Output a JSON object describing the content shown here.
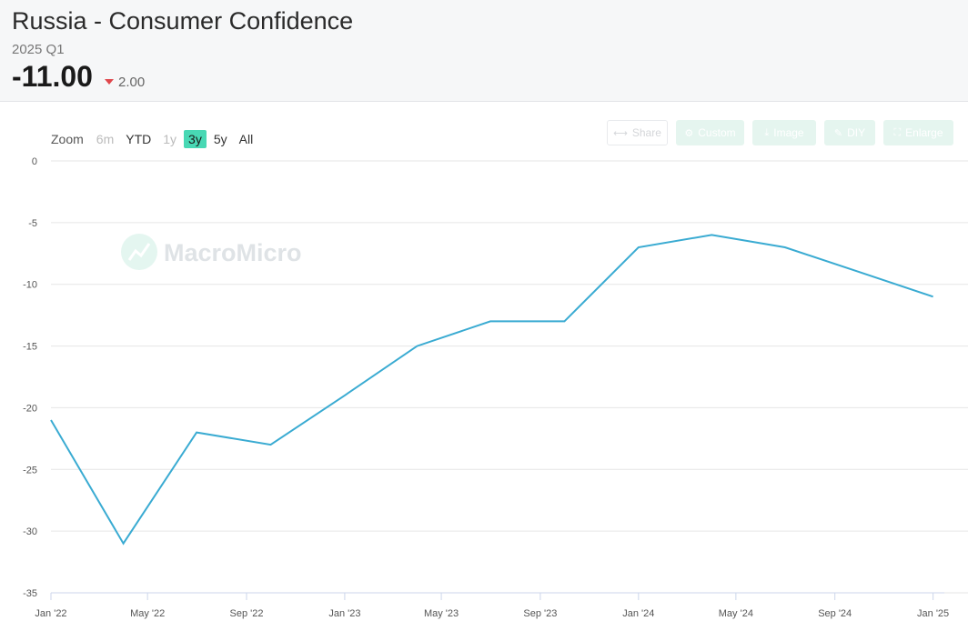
{
  "header": {
    "title": "Russia - Consumer Confidence",
    "period": "2025 Q1",
    "value": "-11.00",
    "change": "2.00"
  },
  "zoom": {
    "label": "Zoom",
    "buttons": [
      "6m",
      "YTD",
      "1y",
      "3y",
      "5y",
      "All"
    ],
    "active": "3y"
  },
  "toolbar": {
    "share": "Share",
    "custom": "Custom",
    "image": "Image",
    "diy": "DIY",
    "enlarge": "Enlarge"
  },
  "watermark": "MacroMicro",
  "colors": {
    "series": "#3aabd2",
    "accent": "#48d8b4",
    "down": "#e0474c"
  },
  "chart_data": {
    "type": "line",
    "title": "",
    "xlabel": "",
    "ylabel": "",
    "ylim": [
      -35,
      0
    ],
    "yticks": [
      0,
      -5,
      -10,
      -15,
      -20,
      -25,
      -30,
      -35
    ],
    "xlim": [
      "2022-01-01",
      "2025-01-15"
    ],
    "xticks": [
      {
        "date": "2022-01-01",
        "label": "Jan '22"
      },
      {
        "date": "2022-05-01",
        "label": "May '22"
      },
      {
        "date": "2022-09-01",
        "label": "Sep '22"
      },
      {
        "date": "2023-01-01",
        "label": "Jan '23"
      },
      {
        "date": "2023-05-01",
        "label": "May '23"
      },
      {
        "date": "2023-09-01",
        "label": "Sep '23"
      },
      {
        "date": "2024-01-01",
        "label": "Jan '24"
      },
      {
        "date": "2024-05-01",
        "label": "May '24"
      },
      {
        "date": "2024-09-01",
        "label": "Sep '24"
      },
      {
        "date": "2025-01-01",
        "label": "Jan '25"
      }
    ],
    "grid": true,
    "series": [
      {
        "points": [
          {
            "x": "2022-01-01",
            "y": -21
          },
          {
            "x": "2022-04-01",
            "y": -31
          },
          {
            "x": "2022-07-01",
            "y": -22
          },
          {
            "x": "2022-10-01",
            "y": -23
          },
          {
            "x": "2023-01-01",
            "y": -19
          },
          {
            "x": "2023-04-01",
            "y": -15
          },
          {
            "x": "2023-07-01",
            "y": -13
          },
          {
            "x": "2023-10-01",
            "y": -13
          },
          {
            "x": "2024-01-01",
            "y": -7
          },
          {
            "x": "2024-04-01",
            "y": -6
          },
          {
            "x": "2024-07-01",
            "y": -7
          },
          {
            "x": "2024-10-01",
            "y": -9
          },
          {
            "x": "2025-01-01",
            "y": -11
          }
        ]
      }
    ]
  }
}
